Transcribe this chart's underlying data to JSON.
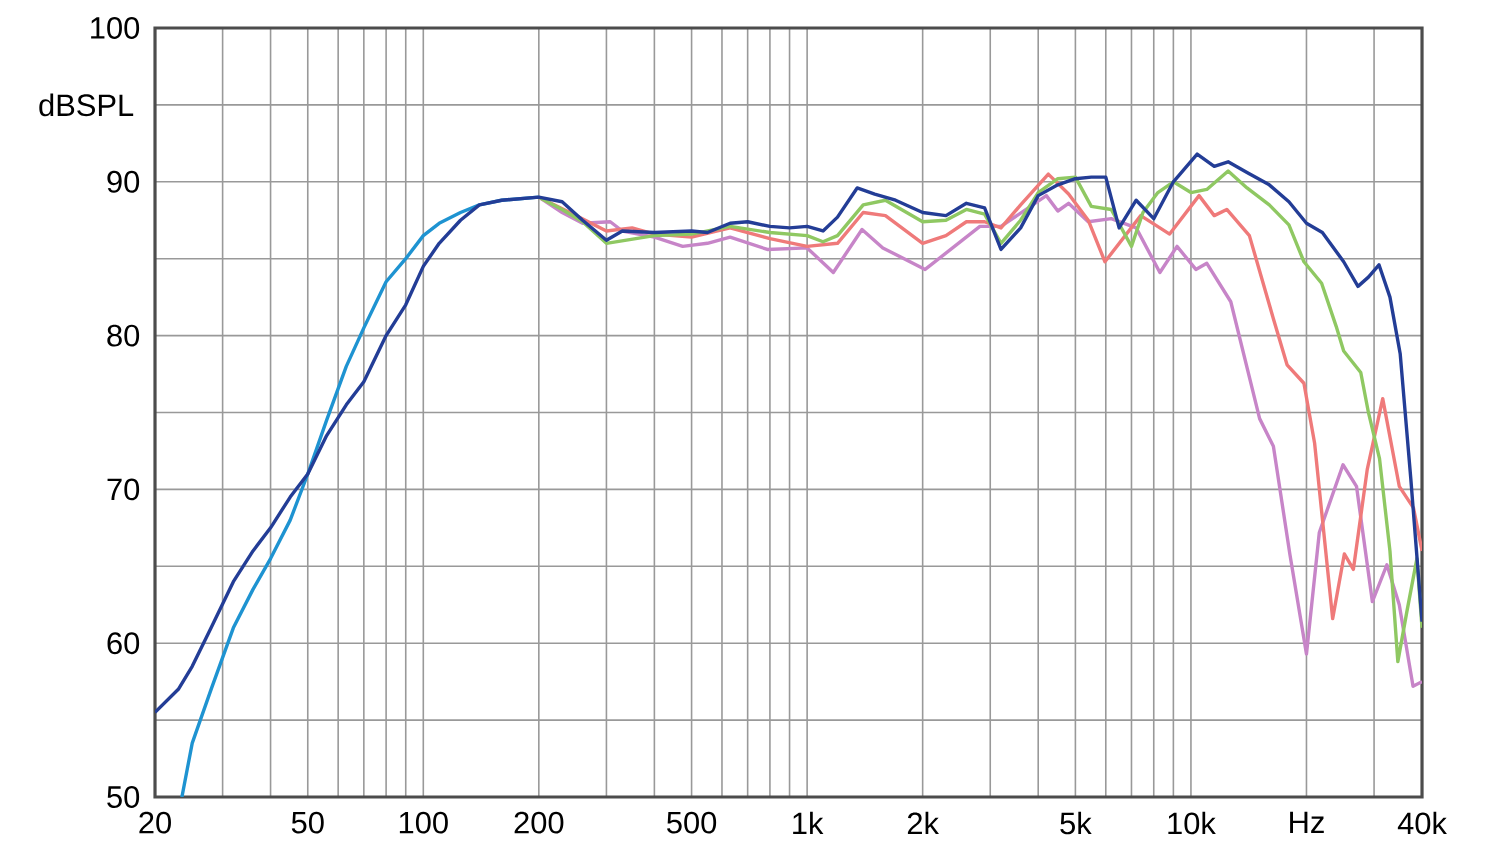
{
  "chart_data": {
    "type": "line",
    "ylabel": "dBSPL",
    "log": "x",
    "grid": true,
    "marker": "none",
    "line_style": "solid",
    "xlim": [
      20,
      40000
    ],
    "ylim": [
      50,
      100
    ],
    "xticks": [
      20,
      {
        "value": 30,
        "label": null
      },
      {
        "value": 40,
        "label": null
      },
      50,
      {
        "value": 60,
        "label": null
      },
      {
        "value": 70,
        "label": null
      },
      {
        "value": 80,
        "label": null
      },
      {
        "value": 90,
        "label": null
      },
      100,
      200,
      {
        "value": 300,
        "label": null
      },
      {
        "value": 400,
        "label": null
      },
      500,
      {
        "value": 600,
        "label": null
      },
      {
        "value": 700,
        "label": null
      },
      {
        "value": 800,
        "label": null
      },
      {
        "value": 900,
        "label": null
      },
      {
        "value": 1000,
        "label": "1k"
      },
      {
        "value": 2000,
        "label": "2k"
      },
      {
        "value": 3000,
        "label": null
      },
      {
        "value": 4000,
        "label": null
      },
      {
        "value": 5000,
        "label": "5k"
      },
      {
        "value": 6000,
        "label": null
      },
      {
        "value": 7000,
        "label": null
      },
      {
        "value": 8000,
        "label": null
      },
      {
        "value": 9000,
        "label": null
      },
      {
        "value": 10000,
        "label": "10k"
      },
      {
        "value": 20000,
        "label": "Hz"
      },
      {
        "value": 30000,
        "label": null
      },
      {
        "value": 40000,
        "label": "40k"
      }
    ],
    "yticks": [
      50,
      {
        "value": 55,
        "label": null
      },
      60,
      {
        "value": 65,
        "label": null
      },
      70,
      {
        "value": 75,
        "label": null
      },
      80,
      {
        "value": 85,
        "label": null
      },
      90,
      {
        "value": 95,
        "label": null
      },
      100
    ],
    "series": [
      {
        "color": "#1e93d1",
        "x": [
          23.5,
          25,
          28,
          32,
          36,
          40,
          45,
          50,
          56,
          63,
          70,
          80,
          90,
          100,
          110,
          125,
          140,
          160,
          200
        ],
        "values": [
          50,
          53.5,
          57,
          61,
          63.5,
          65.5,
          68,
          71,
          74.5,
          78,
          80.5,
          83.5,
          85,
          86.5,
          87.3,
          88,
          88.5,
          88.8,
          89
        ]
      },
      {
        "color": "#c785c8",
        "x": [
          200,
          230,
          260,
          307,
          330,
          400,
          474,
          550,
          630,
          788,
          1000,
          1170,
          1390,
          1575,
          2030,
          2820,
          3200,
          4200,
          4500,
          4800,
          5400,
          6200,
          7200,
          8300,
          9200,
          10300,
          11000,
          12700,
          15100,
          16400,
          18100,
          20000,
          21600,
          24900,
          27000,
          29700,
          32400,
          34900,
          37900,
          40000
        ],
        "values": [
          89,
          88,
          87.3,
          87.4,
          86.8,
          86.4,
          85.8,
          86,
          86.4,
          85.6,
          85.7,
          84.1,
          86.9,
          85.7,
          84.3,
          87.1,
          87.1,
          89.1,
          88.1,
          88.6,
          87.4,
          87.6,
          87,
          84.1,
          85.8,
          84.3,
          84.7,
          82.2,
          74.6,
          72.8,
          65.8,
          59.3,
          67.2,
          71.6,
          70.2,
          62.7,
          65.1,
          62.5,
          57.2,
          57.5
        ]
      },
      {
        "color": "#ef7a7a",
        "x": [
          200,
          250,
          300,
          350,
          400,
          500,
          630,
          800,
          1000,
          1200,
          1400,
          1600,
          2000,
          2300,
          2600,
          2900,
          3200,
          3600,
          4250,
          4800,
          5400,
          5970,
          7400,
          8800,
          10500,
          11500,
          12400,
          14200,
          16400,
          17800,
          19700,
          21000,
          23400,
          25100,
          26500,
          28800,
          31600,
          34900,
          38000,
          40000
        ],
        "values": [
          89,
          87.8,
          86.8,
          87,
          86.6,
          86.4,
          87,
          86.3,
          85.8,
          86,
          88,
          87.8,
          86,
          86.5,
          87.4,
          87.4,
          87,
          88.5,
          90.5,
          89.2,
          87.5,
          84.8,
          87.8,
          86.6,
          89.1,
          87.8,
          88.2,
          86.5,
          81.1,
          78.1,
          76.9,
          73,
          61.6,
          65.8,
          64.8,
          71.3,
          75.9,
          70.2,
          68.8,
          66
        ]
      },
      {
        "color": "#8fc862",
        "x": [
          200,
          230,
          260,
          300,
          400,
          500,
          630,
          800,
          1000,
          1100,
          1200,
          1400,
          1600,
          2000,
          2300,
          2600,
          2900,
          3200,
          3600,
          4000,
          4500,
          5000,
          5500,
          6200,
          7000,
          7500,
          8200,
          9000,
          10000,
          11000,
          12500,
          14000,
          16000,
          18000,
          19700,
          21900,
          23900,
          25000,
          27700,
          29000,
          31000,
          33000,
          34600,
          36500,
          38800,
          40000
        ],
        "values": [
          89,
          88.2,
          87.4,
          86,
          86.5,
          86.6,
          87.1,
          86.7,
          86.5,
          86.1,
          86.5,
          88.5,
          88.8,
          87.4,
          87.5,
          88.2,
          87.9,
          86,
          87.5,
          89.3,
          90.2,
          90.3,
          88.4,
          88.2,
          85.8,
          88,
          89.3,
          90,
          89.3,
          89.5,
          90.7,
          89.6,
          88.5,
          87.2,
          84.8,
          83.4,
          80.6,
          79,
          77.6,
          75,
          72,
          66,
          58.8,
          62,
          65.5,
          61
        ]
      },
      {
        "color": "#233d96",
        "x": [
          20,
          23,
          25,
          28,
          32,
          36,
          40,
          45,
          50,
          56,
          63,
          70,
          80,
          90,
          100,
          110,
          125,
          140,
          160,
          200,
          230,
          260,
          300,
          330,
          400,
          500,
          550,
          630,
          700,
          800,
          900,
          1000,
          1100,
          1200,
          1350,
          1500,
          1700,
          2000,
          2300,
          2600,
          2900,
          3200,
          3600,
          4000,
          4500,
          5000,
          5500,
          6000,
          6500,
          7200,
          8000,
          9000,
          10380,
          11500,
          12500,
          14000,
          16000,
          18000,
          20000,
          22000,
          25000,
          27240,
          29000,
          30900,
          33000,
          35100,
          37400,
          40000
        ],
        "values": [
          55.5,
          57,
          58.5,
          61,
          64,
          66,
          67.5,
          69.5,
          71,
          73.5,
          75.5,
          77,
          80,
          82,
          84.5,
          86,
          87.5,
          88.5,
          88.8,
          89,
          88.7,
          87.5,
          86.2,
          86.8,
          86.7,
          86.8,
          86.7,
          87.3,
          87.4,
          87.1,
          87,
          87.1,
          86.8,
          87.7,
          89.6,
          89.2,
          88.8,
          88,
          87.8,
          88.6,
          88.3,
          85.6,
          87,
          89.1,
          89.8,
          90.2,
          90.3,
          90.3,
          87,
          88.8,
          87.6,
          90,
          91.8,
          91,
          91.3,
          90.6,
          89.8,
          88.7,
          87.3,
          86.7,
          84.8,
          83.2,
          83.8,
          84.6,
          82.5,
          78.8,
          70.7,
          61.4
        ]
      }
    ]
  }
}
